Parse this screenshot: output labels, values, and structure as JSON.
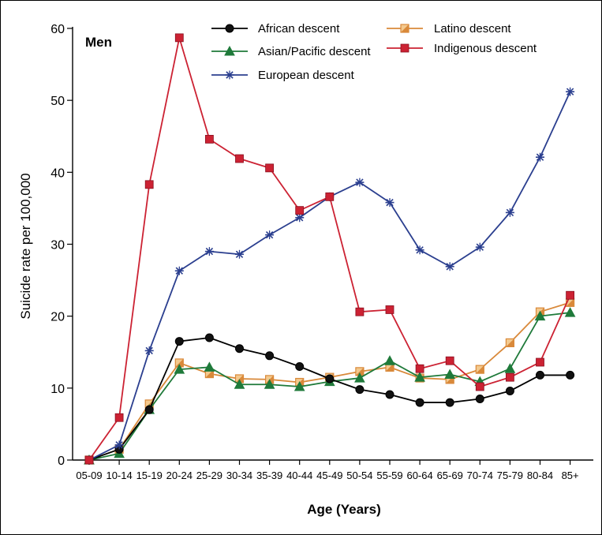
{
  "chart_data": {
    "type": "line",
    "panel_label": "Men",
    "xlabel": "Age (Years)",
    "ylabel": "Suicide rate per 100,000",
    "ylim": [
      0,
      60
    ],
    "yticks": [
      0,
      10,
      20,
      30,
      40,
      50,
      60
    ],
    "grid": false,
    "legend_position": "top",
    "categories": [
      "05-09",
      "10-14",
      "15-19",
      "20-24",
      "25-29",
      "30-34",
      "35-39",
      "40-44",
      "45-49",
      "50-54",
      "55-59",
      "60-64",
      "65-69",
      "70-74",
      "75-79",
      "80-84",
      "85+"
    ],
    "series": [
      {
        "name": "African descent",
        "color": "#000000",
        "marker": "circle",
        "values": [
          0,
          1.5,
          7,
          16.5,
          17,
          15.5,
          14.5,
          13,
          11.3,
          9.8,
          9.1,
          8,
          8,
          8.5,
          9.6,
          11.8,
          11.8
        ]
      },
      {
        "name": "Latino descent",
        "color": "#d9893a",
        "marker": "half-square",
        "values": [
          0,
          1.5,
          7.8,
          13.5,
          12,
          11.3,
          11.2,
          10.8,
          11.5,
          12.3,
          12.9,
          11.4,
          11.2,
          12.6,
          16.3,
          20.6,
          21.9
        ]
      },
      {
        "name": "Asian/Pacific descent",
        "color": "#1f7a3a",
        "marker": "triangle",
        "values": [
          0,
          0.9,
          7,
          12.6,
          12.9,
          10.5,
          10.5,
          10.2,
          10.9,
          11.4,
          13.8,
          11.5,
          11.9,
          10.9,
          12.7,
          20,
          20.5
        ]
      },
      {
        "name": "Indigenous descent",
        "color": "#cc2233",
        "marker": "square",
        "values": [
          0,
          5.9,
          38.3,
          58.7,
          44.6,
          41.9,
          40.6,
          34.7,
          36.6,
          20.6,
          20.9,
          12.7,
          13.8,
          10.2,
          11.5,
          13.6,
          22.9
        ]
      },
      {
        "name": "European descent",
        "color": "#2b3f8f",
        "marker": "asterisk",
        "values": [
          0,
          2.1,
          15.2,
          26.3,
          29,
          28.6,
          31.3,
          33.7,
          36.6,
          38.6,
          35.8,
          29.2,
          26.9,
          29.6,
          34.4,
          42.1,
          51.2
        ]
      }
    ]
  }
}
